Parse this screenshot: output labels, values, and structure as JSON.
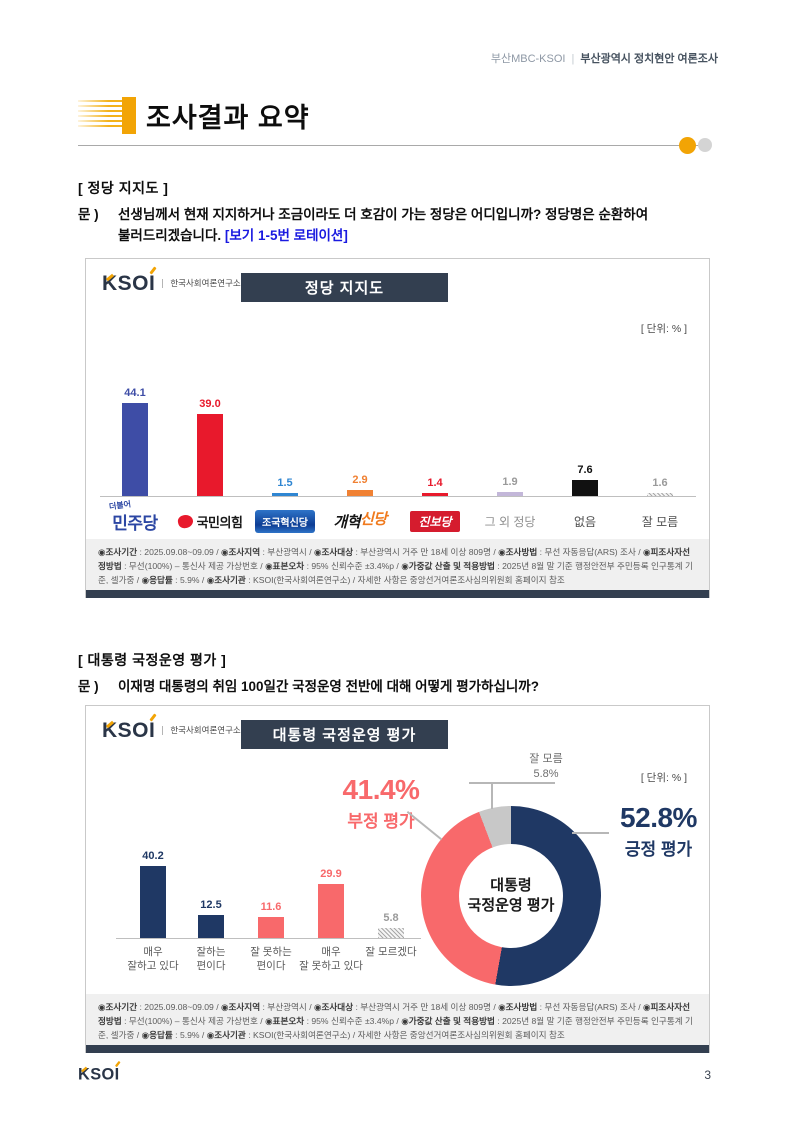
{
  "header": {
    "brand": "부산MBC-KSOI",
    "separator": "|",
    "title": "부산광역시 정치현안 여론조사",
    "page_title": "조사결과 요약"
  },
  "ksoi": {
    "logo": "KSOI",
    "org": "한국사회여론연구소"
  },
  "section1": {
    "heading": "[ 정당 지지도 ]",
    "q_prefix": "문 )",
    "q_line1": "선생님께서 현재 지지하거나 조금이라도 더 호감이 가는 정당은 어디입니까? 정당명은 순환하여",
    "q_line2": "불러드리겠습니다.",
    "q_note": "[보기 1-5번 로테이션]"
  },
  "section2": {
    "heading": "[ 대통령 국정운영 평가 ]",
    "q_prefix": "문 )",
    "q_line1": "이재명 대통령의 취임 100일간 국정운영 전반에 대해 어떻게 평가하십니까?"
  },
  "chart_data": [
    {
      "type": "bar",
      "title": "정당 지지도",
      "unit_display": "[ 단위: % ]",
      "ylabel": "%",
      "ylim": [
        0,
        50
      ],
      "categories": [
        "더불어민주당",
        "국민의힘",
        "조국혁신당",
        "개혁신당",
        "진보당",
        "그 외 정당",
        "없음",
        "잘 모름"
      ],
      "values": [
        44.1,
        39.0,
        1.5,
        2.9,
        1.4,
        1.9,
        7.6,
        1.6
      ],
      "bar_colors": [
        "#3e4da6",
        "#e8192c",
        "#2f86d2",
        "#f08133",
        "#e8192c",
        "#c3b7d9",
        "#111111",
        "hatch"
      ],
      "value_colors": [
        "#3e4da6",
        "#e8192c",
        "#2f86d2",
        "#f08133",
        "#e8192c",
        "#9a9a9a",
        "#111111",
        "#9a9a9a"
      ],
      "label_styles": [
        {
          "style": "minjoo",
          "small": "더불어",
          "main": "민주당"
        },
        {
          "style": "ppp",
          "main": "국민의힘"
        },
        {
          "style": "choguk",
          "main": "조국혁신당"
        },
        {
          "style": "reform",
          "part1": "개혁",
          "part2": "신당"
        },
        {
          "style": "jinbo",
          "main": "진보당"
        },
        {
          "style": "muted",
          "main": "그 외 정당"
        },
        {
          "style": "plain",
          "main": "없음"
        },
        {
          "style": "plain",
          "main": "잘 모름"
        }
      ]
    },
    {
      "type": "bar+donut",
      "title": "대통령 국정운영 평가",
      "unit_display": "[ 단위: % ]",
      "bar": {
        "categories": [
          "매우 잘하고 있다",
          "잘하는 편이다",
          "잘 못하는 편이다",
          "매우 잘 못하고 있다",
          "잘 모르겠다"
        ],
        "category_lines": [
          [
            "매우",
            "잘하고 있다"
          ],
          [
            "잘하는",
            "편이다"
          ],
          [
            "잘 못하는",
            "편이다"
          ],
          [
            "매우",
            "잘 못하고 있다"
          ],
          [
            "잘 모르겠다"
          ]
        ],
        "values": [
          40.2,
          12.5,
          11.6,
          29.9,
          5.8
        ],
        "bar_colors": [
          "#1f3864",
          "#1f3864",
          "#f8696b",
          "#f8696b",
          "hatch"
        ],
        "value_colors": [
          "#1f3864",
          "#1f3864",
          "#f8696b",
          "#f8696b",
          "#9a9a9a"
        ]
      },
      "donut": {
        "segments": [
          {
            "name": "긍정 평가",
            "value": 52.8,
            "color": "#1f3864"
          },
          {
            "name": "부정 평가",
            "value": 41.4,
            "color": "#f8696b"
          },
          {
            "name": "잘 모름",
            "value": 5.8,
            "color": "#c8c8c8"
          }
        ],
        "center_lines": [
          "대통령",
          "국정운영 평가"
        ],
        "callouts": {
          "negative": {
            "pct": "41.4%",
            "label": "부정 평가"
          },
          "positive": {
            "pct": "52.8%",
            "label": "긍정 평가"
          },
          "unknown": {
            "label": "잘 모름",
            "pct": "5.8%"
          }
        }
      }
    }
  ],
  "footnote": {
    "segments": [
      {
        "b": "◉조사기간",
        "t": " : 2025.09.08~09.09 / "
      },
      {
        "b": "◉조사지역",
        "t": " : 부산광역시 / "
      },
      {
        "b": "◉조사대상",
        "t": " : 부산광역시 거주 만 18세 이상 809명 / "
      },
      {
        "b": "◉조사방법",
        "t": " : 무선 자동응답(ARS) 조사 / "
      },
      {
        "b": "◉피조사자선정방법",
        "t": " : 무선(100%) – 통신사 제공 가상번호 / "
      },
      {
        "b": "◉표본오차",
        "t": " : 95% 신뢰수준 ±3.4%p / "
      },
      {
        "b": "◉가중값 산출 및 적용방법",
        "t": " : 2025년 8월 말 기준 행정안전부 주민등록 인구통계 기준, 셀가중 / "
      },
      {
        "b": "◉응답률",
        "t": " : 5.9% / "
      },
      {
        "b": "◉조사기관",
        "t": " : KSOI(한국사회여론연구소) / 자세한 사항은 중앙선거여론조사심의위원회 홈페이지 참조"
      }
    ]
  },
  "footer": {
    "page_number": "3"
  }
}
